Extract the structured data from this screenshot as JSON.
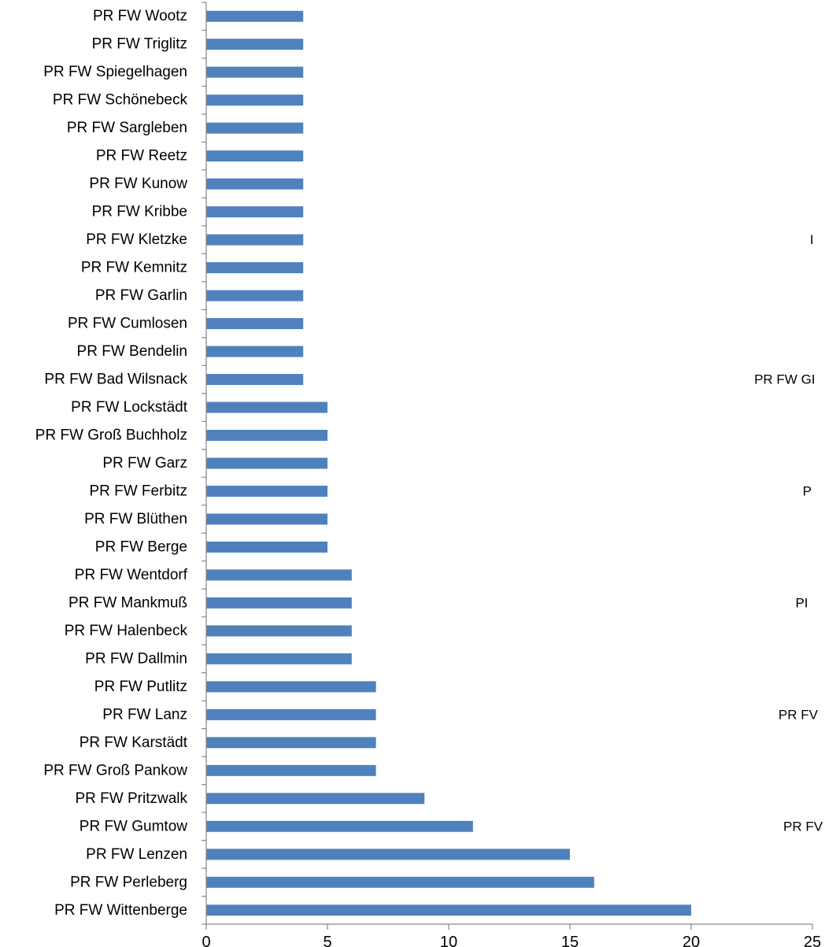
{
  "chart_data": {
    "type": "bar",
    "orientation": "horizontal",
    "categories": [
      "PR FW Wootz",
      "PR FW Triglitz",
      "PR FW Spiegelhagen",
      "PR FW Schönebeck",
      "PR FW Sargleben",
      "PR FW Reetz",
      "PR FW Kunow",
      "PR FW Kribbe",
      "PR FW Kletzke",
      "PR FW Kemnitz",
      "PR FW Garlin",
      "PR FW Cumlosen",
      "PR FW Bendelin",
      "PR FW Bad Wilsnack",
      "PR FW Lockstädt",
      "PR FW Groß Buchholz",
      "PR FW Garz",
      "PR FW Ferbitz",
      "PR FW Blüthen",
      "PR FW Berge",
      "PR FW Wentdorf",
      "PR FW Mankmuß",
      "PR FW Halenbeck",
      "PR FW Dallmin",
      "PR FW Putlitz",
      "PR FW Lanz",
      "PR FW Karstädt",
      "PR FW Groß Pankow",
      "PR FW Pritzwalk",
      "PR FW Gumtow",
      "PR FW Lenzen",
      "PR FW Perleberg",
      "PR FW Wittenberge"
    ],
    "values": [
      4,
      4,
      4,
      4,
      4,
      4,
      4,
      4,
      4,
      4,
      4,
      4,
      4,
      4,
      5,
      5,
      5,
      5,
      5,
      5,
      6,
      6,
      6,
      6,
      7,
      7,
      7,
      7,
      9,
      11,
      15,
      16,
      20
    ],
    "xlim": [
      0,
      25
    ],
    "xticks": [
      "0",
      "5",
      "10",
      "15",
      "20",
      "25"
    ],
    "bar_color": "#4f81bd",
    "grid": false,
    "legend": "none",
    "title": "",
    "xlabel": "",
    "ylabel": "",
    "edge_labels": [
      {
        "text": "PR FW GI",
        "category": "PR FW Bad Wilsnack",
        "x_value": 22.6
      },
      {
        "text": "P",
        "category": "PR FW Ferbitz",
        "x_value": 24.6
      },
      {
        "text": "PI",
        "category": "PR FW Mankmuß",
        "x_value": 24.3
      },
      {
        "text": "PR FV",
        "category": "PR FW Lanz",
        "x_value": 23.6
      },
      {
        "text": "PR FV",
        "category": "PR FW Gumtow",
        "x_value": 23.8
      },
      {
        "text": "I",
        "category": "PR FW Kletzke",
        "x_value": 24.9
      }
    ]
  }
}
